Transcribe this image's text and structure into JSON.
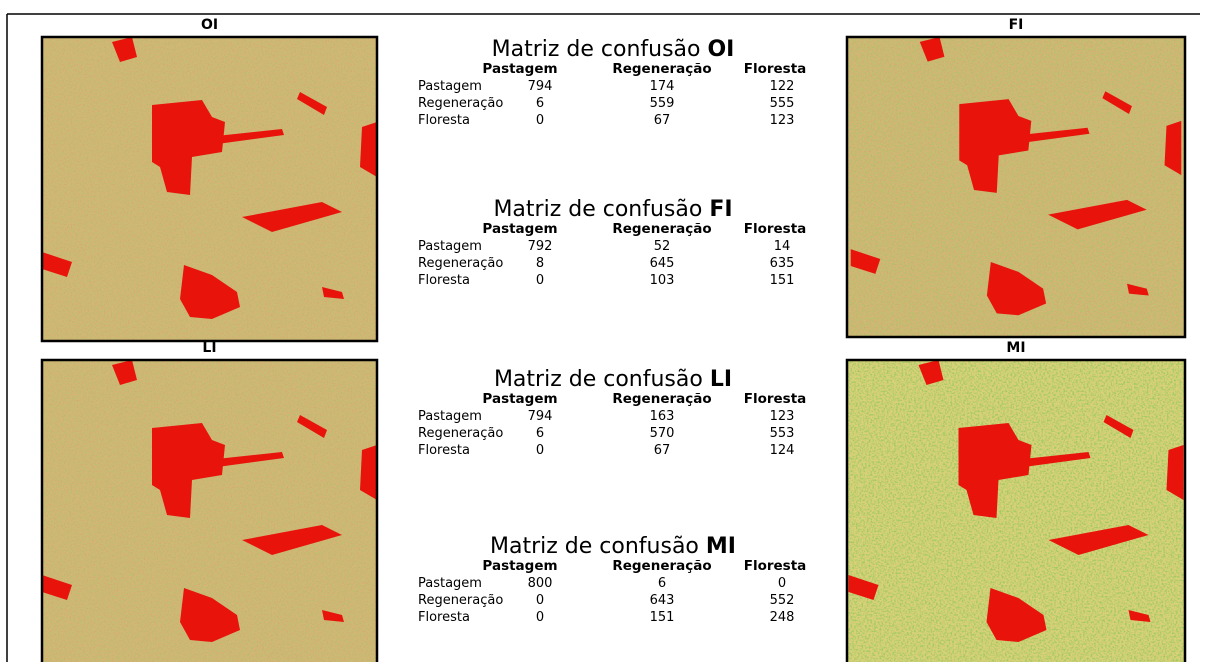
{
  "panels": [
    {
      "label": "OI"
    },
    {
      "label": "FI"
    },
    {
      "label": "LI"
    },
    {
      "label": "MI"
    }
  ],
  "matrices": [
    {
      "title": "Matriz de confusão",
      "code": "OI",
      "columns": [
        "Pastagem",
        "Regeneração",
        "Floresta"
      ],
      "rows": [
        {
          "label": "Pastagem",
          "values": [
            794,
            174,
            122
          ]
        },
        {
          "label": "Regeneração",
          "values": [
            6,
            559,
            555
          ]
        },
        {
          "label": "Floresta",
          "values": [
            0,
            67,
            123
          ]
        }
      ]
    },
    {
      "title": "Matriz de confusão",
      "code": "FI",
      "columns": [
        "Pastagem",
        "Regeneração",
        "Floresta"
      ],
      "rows": [
        {
          "label": "Pastagem",
          "values": [
            792,
            52,
            14
          ]
        },
        {
          "label": "Regeneração",
          "values": [
            8,
            645,
            635
          ]
        },
        {
          "label": "Floresta",
          "values": [
            0,
            103,
            151
          ]
        }
      ]
    },
    {
      "title": "Matriz de confusão",
      "code": "LI",
      "columns": [
        "Pastagem",
        "Regeneração",
        "Floresta"
      ],
      "rows": [
        {
          "label": "Pastagem",
          "values": [
            794,
            163,
            123
          ]
        },
        {
          "label": "Regeneração",
          "values": [
            6,
            570,
            553
          ]
        },
        {
          "label": "Floresta",
          "values": [
            0,
            67,
            124
          ]
        }
      ]
    },
    {
      "title": "Matriz de confusão",
      "code": "MI",
      "columns": [
        "Pastagem",
        "Regeneração",
        "Floresta"
      ],
      "rows": [
        {
          "label": "Pastagem",
          "values": [
            800,
            6,
            0
          ]
        },
        {
          "label": "Regeneração",
          "values": [
            0,
            643,
            552
          ]
        },
        {
          "label": "Floresta",
          "values": [
            0,
            151,
            248
          ]
        }
      ]
    }
  ]
}
